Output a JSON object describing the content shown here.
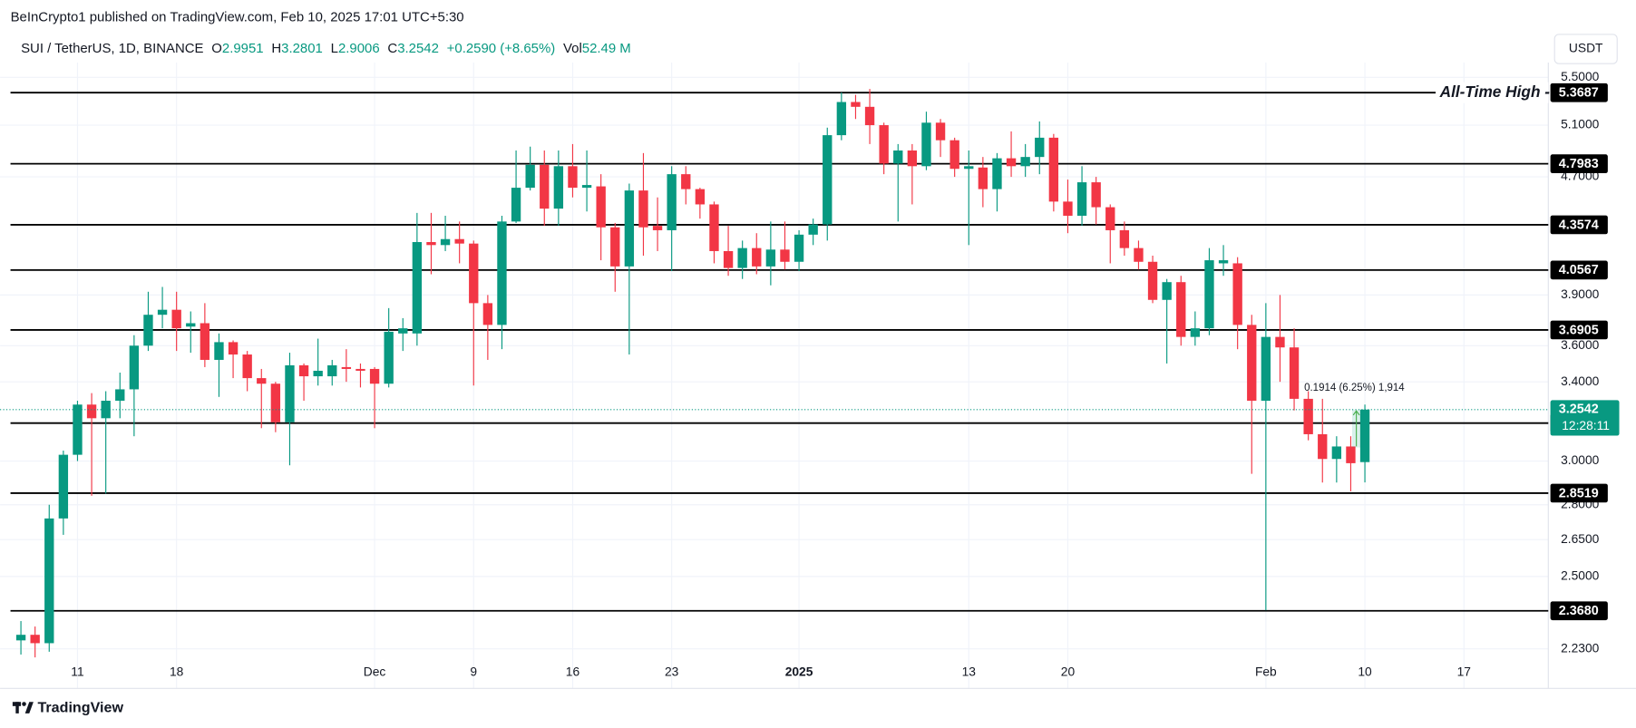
{
  "header": "BeInCrypto1 published on TradingView.com, Feb 10, 2025 17:01 UTC+5:30",
  "footer": "TradingView",
  "chart_data": {
    "type": "candlestick",
    "symbol": "SUI / TetherUS, 1D, BINANCE",
    "legend": {
      "open_label": "O",
      "high_label": "H",
      "low_label": "L",
      "close_label": "C",
      "change": "+0.2590 (+8.65%)",
      "volume_label": "Vol",
      "volume": "52.49 M"
    },
    "currency": "USDT",
    "log_scale": true,
    "grid": true,
    "up_color": "#089981",
    "down_color": "#f23645",
    "level_color": "#000000",
    "categories": [
      null,
      null,
      null,
      null,
      "11",
      null,
      null,
      null,
      null,
      null,
      null,
      "18",
      null,
      null,
      null,
      null,
      null,
      null,
      null,
      null,
      null,
      null,
      null,
      null,
      null,
      "Dec",
      null,
      null,
      null,
      null,
      null,
      null,
      "9",
      null,
      null,
      null,
      null,
      null,
      null,
      "16",
      null,
      null,
      null,
      null,
      null,
      null,
      "23",
      null,
      null,
      null,
      null,
      null,
      null,
      null,
      null,
      "2025",
      null,
      null,
      null,
      null,
      null,
      null,
      null,
      null,
      null,
      null,
      null,
      "13",
      null,
      null,
      null,
      null,
      null,
      null,
      "20",
      null,
      null,
      null,
      null,
      null,
      null,
      null,
      null,
      null,
      null,
      null,
      null,
      null,
      "Feb",
      null,
      null,
      null,
      null,
      null,
      null,
      "10",
      null,
      null,
      null,
      null,
      null,
      null,
      "17"
    ],
    "open": [
      2.26,
      2.28,
      2.25,
      2.74,
      3.03,
      3.28,
      3.21,
      3.3,
      3.36,
      3.6,
      3.78,
      3.81,
      3.71,
      3.73,
      3.52,
      3.62,
      3.55,
      3.42,
      3.39,
      3.19,
      3.49,
      3.43,
      3.43,
      3.48,
      3.47,
      3.47,
      3.39,
      3.67,
      3.67,
      4.24,
      4.22,
      4.26,
      4.23,
      3.85,
      3.72,
      4.38,
      4.62,
      4.79,
      4.47,
      4.78,
      4.62,
      4.63,
      4.34,
      4.08,
      4.6,
      4.35,
      4.32,
      4.72,
      4.61,
      4.5,
      4.18,
      4.07,
      4.2,
      4.08,
      4.19,
      4.11,
      4.29,
      4.36,
      5.02,
      5.29,
      5.25,
      5.1,
      4.8,
      4.9,
      4.78,
      5.12,
      4.98,
      4.76,
      4.77,
      4.61,
      4.84,
      4.78,
      4.85,
      5.0,
      4.52,
      4.42,
      4.66,
      4.48,
      4.32,
      4.2,
      4.11,
      3.87,
      3.98,
      3.65,
      3.7,
      4.1,
      4.1,
      3.72,
      3.3,
      3.65,
      3.59,
      3.31,
      3.13,
      3.01,
      3.07,
      2.9951,
      null,
      null,
      null,
      null,
      null,
      null,
      null
    ],
    "close": [
      2.28,
      2.25,
      2.74,
      3.03,
      3.28,
      3.21,
      3.3,
      3.36,
      3.6,
      3.78,
      3.81,
      3.7,
      3.73,
      3.52,
      3.62,
      3.55,
      3.42,
      3.39,
      3.19,
      3.49,
      3.43,
      3.46,
      3.49,
      3.47,
      3.46,
      3.39,
      3.68,
      3.7,
      4.24,
      4.22,
      4.26,
      4.23,
      3.85,
      3.72,
      4.38,
      4.62,
      4.79,
      4.47,
      4.78,
      4.62,
      4.64,
      4.34,
      4.08,
      4.6,
      4.34,
      4.32,
      4.72,
      4.61,
      4.5,
      4.18,
      4.07,
      4.2,
      4.08,
      4.19,
      4.11,
      4.29,
      4.36,
      5.02,
      5.29,
      5.25,
      5.1,
      4.8,
      4.9,
      4.78,
      5.12,
      4.98,
      4.76,
      4.78,
      4.61,
      4.84,
      4.78,
      4.85,
      5.0,
      4.52,
      4.42,
      4.66,
      4.48,
      4.32,
      4.2,
      4.11,
      3.87,
      3.98,
      3.65,
      3.7,
      4.12,
      4.12,
      3.72,
      3.3,
      3.65,
      3.59,
      3.31,
      3.13,
      3.01,
      3.07,
      2.99,
      3.2542,
      null,
      null,
      null,
      null,
      null,
      null,
      null
    ],
    "high": [
      2.33,
      2.31,
      2.8,
      3.05,
      3.3,
      3.34,
      3.35,
      3.45,
      3.66,
      3.92,
      3.95,
      3.92,
      3.8,
      3.85,
      3.67,
      3.63,
      3.57,
      3.47,
      3.4,
      3.56,
      3.5,
      3.64,
      3.52,
      3.58,
      3.5,
      3.48,
      3.82,
      3.76,
      4.44,
      4.44,
      4.42,
      4.38,
      4.25,
      3.9,
      4.42,
      4.9,
      4.93,
      4.9,
      4.9,
      4.95,
      4.9,
      4.72,
      4.37,
      4.65,
      4.88,
      4.55,
      4.78,
      4.78,
      4.62,
      4.52,
      4.35,
      4.25,
      4.3,
      4.38,
      4.38,
      4.32,
      4.4,
      5.08,
      5.37,
      5.35,
      5.4,
      5.12,
      4.95,
      4.95,
      5.21,
      5.15,
      5.0,
      4.9,
      4.85,
      4.88,
      5.05,
      4.95,
      5.13,
      5.03,
      4.68,
      4.78,
      4.7,
      4.5,
      4.38,
      4.25,
      4.15,
      4.0,
      4.02,
      3.8,
      4.2,
      4.22,
      4.14,
      3.78,
      3.85,
      3.9,
      3.7,
      3.35,
      3.31,
      3.12,
      3.12,
      3.2801,
      null,
      null,
      null,
      null,
      null,
      null,
      null
    ],
    "low": [
      2.21,
      2.2,
      2.22,
      2.67,
      3.0,
      2.84,
      2.85,
      3.21,
      3.12,
      3.57,
      3.7,
      3.57,
      3.56,
      3.48,
      3.32,
      3.42,
      3.35,
      3.16,
      3.14,
      2.98,
      3.3,
      3.38,
      3.38,
      3.4,
      3.37,
      3.16,
      3.37,
      3.57,
      3.6,
      4.03,
      4.18,
      4.1,
      3.38,
      3.52,
      3.58,
      4.37,
      4.6,
      4.35,
      4.35,
      4.55,
      4.45,
      4.12,
      3.92,
      3.55,
      4.15,
      4.18,
      4.05,
      4.5,
      4.4,
      4.1,
      4.02,
      4.0,
      4.03,
      3.96,
      4.06,
      4.05,
      4.22,
      4.25,
      4.98,
      5.15,
      4.95,
      4.72,
      4.38,
      4.5,
      4.75,
      4.85,
      4.7,
      4.22,
      4.48,
      4.45,
      4.7,
      4.7,
      4.72,
      4.45,
      4.3,
      4.35,
      4.36,
      4.1,
      4.15,
      4.06,
      3.85,
      3.5,
      3.6,
      3.6,
      3.66,
      4.02,
      3.58,
      2.94,
      2.37,
      3.4,
      3.25,
      3.1,
      2.9,
      2.9,
      2.86,
      2.9006,
      null,
      null,
      null,
      null,
      null,
      null,
      null
    ],
    "ylim": [
      2.095,
      5.63
    ],
    "yticks": [
      {
        "value": 5.5,
        "label": "5.5000"
      },
      {
        "value": 5.1,
        "label": "5.1000"
      },
      {
        "value": 4.7,
        "label": "4.7000"
      },
      {
        "value": 3.9,
        "label": "3.9000"
      },
      {
        "value": 3.6,
        "label": "3.6000"
      },
      {
        "value": 3.4,
        "label": "3.4000"
      },
      {
        "value": 3.0,
        "label": "3.0000"
      },
      {
        "value": 2.8,
        "label": "2.8000"
      },
      {
        "value": 2.65,
        "label": "2.6500"
      },
      {
        "value": 2.5,
        "label": "2.5000"
      },
      {
        "value": 2.23,
        "label": "2.2300"
      }
    ],
    "levels": [
      5.3687,
      4.7983,
      4.3574,
      4.0567,
      3.6905,
      3.1855,
      2.8519,
      {
        "value": 2.368,
        "label": "2.3680"
      }
    ],
    "level_annotation": "All-Time High -",
    "countdown": "12:28:11",
    "measure_label": "0.1914 (6.25%) 1,914"
  }
}
